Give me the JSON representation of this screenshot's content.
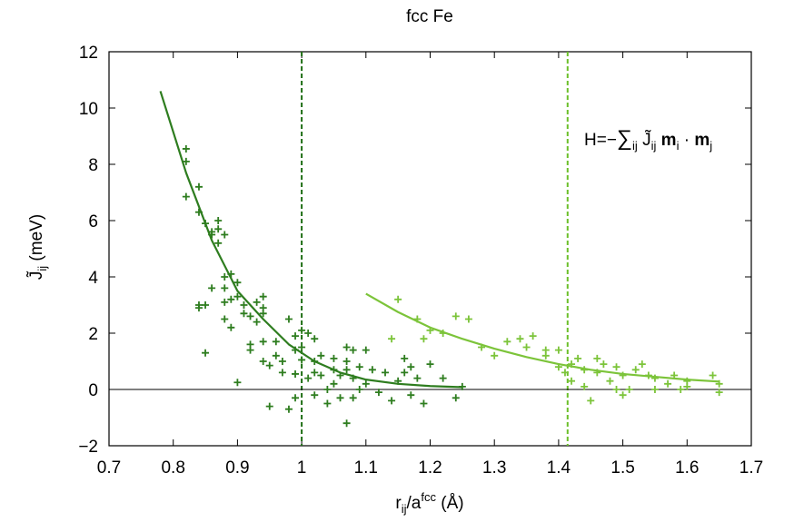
{
  "chart_data": {
    "type": "scatter",
    "title": "fcc Fe",
    "xlabel": {
      "base": "r",
      "base_sub": "ij",
      "mid": "/a",
      "mid_sup": "fcc",
      "unit": " (Å)"
    },
    "ylabel": {
      "base": "J̃",
      "base_sub": "ij",
      "unit": " (meV)"
    },
    "annotation": {
      "prefix": "H=−",
      "sum": "∑",
      "sum_sub": "ij",
      "j": " J̃",
      "j_sub": "ij",
      "m1": " m",
      "m1_sub": "i",
      "dot": " · ",
      "m2": "m",
      "m2_sub": "j"
    },
    "xlim": [
      0.7,
      1.7
    ],
    "ylim": [
      -2,
      12
    ],
    "x_ticks": [
      "0.7",
      "0.8",
      "0.9",
      "1",
      "1.1",
      "1.2",
      "1.3",
      "1.4",
      "1.5",
      "1.6",
      "1.7"
    ],
    "y_ticks": [
      "−2",
      "0",
      "2",
      "4",
      "6",
      "8",
      "10",
      "12"
    ],
    "grid": false,
    "colors": {
      "series1": "#2e7d1f",
      "series2": "#7cc43a",
      "vline1": "#1f6e14",
      "vline2": "#6cc02a"
    },
    "vlines": [
      1.0,
      1.414
    ],
    "series": [
      {
        "marker": "plus",
        "points": [
          [
            0.82,
            8.55
          ],
          [
            0.82,
            8.1
          ],
          [
            0.82,
            6.85
          ],
          [
            0.84,
            7.2
          ],
          [
            0.84,
            6.3
          ],
          [
            0.84,
            3.0
          ],
          [
            0.84,
            2.9
          ],
          [
            0.85,
            5.9
          ],
          [
            0.85,
            3.0
          ],
          [
            0.85,
            1.3
          ],
          [
            0.86,
            5.6
          ],
          [
            0.86,
            3.6
          ],
          [
            0.86,
            5.5
          ],
          [
            0.87,
            6.0
          ],
          [
            0.87,
            5.7
          ],
          [
            0.87,
            5.2
          ],
          [
            0.88,
            5.5
          ],
          [
            0.88,
            4.0
          ],
          [
            0.88,
            3.6
          ],
          [
            0.88,
            3.1
          ],
          [
            0.88,
            2.5
          ],
          [
            0.89,
            4.1
          ],
          [
            0.89,
            3.2
          ],
          [
            0.89,
            2.2
          ],
          [
            0.9,
            3.8
          ],
          [
            0.9,
            3.3
          ],
          [
            0.9,
            0.25
          ],
          [
            0.91,
            3.0
          ],
          [
            0.91,
            2.7
          ],
          [
            0.92,
            2.6
          ],
          [
            0.92,
            1.6
          ],
          [
            0.92,
            1.4
          ],
          [
            0.93,
            3.1
          ],
          [
            0.93,
            2.4
          ],
          [
            0.94,
            3.3
          ],
          [
            0.94,
            2.9
          ],
          [
            0.94,
            2.7
          ],
          [
            0.94,
            1.7
          ],
          [
            0.94,
            1.0
          ],
          [
            0.95,
            0.85
          ],
          [
            0.95,
            -0.6
          ],
          [
            0.96,
            1.7
          ],
          [
            0.96,
            1.2
          ],
          [
            0.97,
            0.6
          ],
          [
            0.97,
            1.0
          ],
          [
            0.98,
            2.5
          ],
          [
            0.98,
            -0.7
          ],
          [
            0.99,
            1.9
          ],
          [
            0.99,
            1.4
          ],
          [
            0.99,
            0.55
          ],
          [
            0.99,
            -0.3
          ],
          [
            1.0,
            2.1
          ],
          [
            1.0,
            1.5
          ],
          [
            1.0,
            1.05
          ],
          [
            1.01,
            2.0
          ],
          [
            1.01,
            0.4
          ],
          [
            1.02,
            1.8
          ],
          [
            1.02,
            1.0
          ],
          [
            1.02,
            0.6
          ],
          [
            1.02,
            -0.2
          ],
          [
            1.03,
            1.2
          ],
          [
            1.03,
            0.5
          ],
          [
            1.04,
            0.0
          ],
          [
            1.04,
            -0.5
          ],
          [
            1.05,
            1.1
          ],
          [
            1.05,
            0.7
          ],
          [
            1.05,
            0.2
          ],
          [
            1.06,
            0.5
          ],
          [
            1.06,
            -0.3
          ],
          [
            1.07,
            1.5
          ],
          [
            1.07,
            1.0
          ],
          [
            1.07,
            0.7
          ],
          [
            1.07,
            -1.2
          ],
          [
            1.08,
            1.4
          ],
          [
            1.08,
            0.4
          ],
          [
            1.08,
            -0.3
          ],
          [
            1.09,
            0.8
          ],
          [
            1.09,
            0.0
          ],
          [
            1.1,
            1.4
          ],
          [
            1.1,
            0.2
          ],
          [
            1.11,
            0.7
          ],
          [
            1.12,
            -0.1
          ],
          [
            1.13,
            0.6
          ],
          [
            1.14,
            -0.4
          ],
          [
            1.15,
            0.3
          ],
          [
            1.16,
            1.1
          ],
          [
            1.16,
            0.6
          ],
          [
            1.17,
            0.8
          ],
          [
            1.17,
            -0.2
          ],
          [
            1.18,
            0.4
          ],
          [
            1.19,
            -0.5
          ],
          [
            1.2,
            0.9
          ],
          [
            1.22,
            0.4
          ],
          [
            1.24,
            -0.3
          ],
          [
            1.25,
            0.1
          ]
        ]
      },
      {
        "marker": "plus",
        "points": [
          [
            1.15,
            3.2
          ],
          [
            1.14,
            1.8
          ],
          [
            1.18,
            2.5
          ],
          [
            1.19,
            1.8
          ],
          [
            1.2,
            2.1
          ],
          [
            1.22,
            2.0
          ],
          [
            1.24,
            2.6
          ],
          [
            1.26,
            2.5
          ],
          [
            1.28,
            1.5
          ],
          [
            1.3,
            1.2
          ],
          [
            1.32,
            1.7
          ],
          [
            1.34,
            1.8
          ],
          [
            1.35,
            1.5
          ],
          [
            1.36,
            1.9
          ],
          [
            1.38,
            1.4
          ],
          [
            1.38,
            1.2
          ],
          [
            1.4,
            0.8
          ],
          [
            1.4,
            1.4
          ],
          [
            1.41,
            0.6
          ],
          [
            1.42,
            0.9
          ],
          [
            1.42,
            0.3
          ],
          [
            1.43,
            1.1
          ],
          [
            1.44,
            0.7
          ],
          [
            1.44,
            0.1
          ],
          [
            1.45,
            -0.4
          ],
          [
            1.46,
            1.1
          ],
          [
            1.46,
            0.6
          ],
          [
            1.47,
            0.9
          ],
          [
            1.48,
            0.3
          ],
          [
            1.49,
            0.8
          ],
          [
            1.49,
            0.0
          ],
          [
            1.5,
            0.5
          ],
          [
            1.5,
            -0.2
          ],
          [
            1.51,
            0.0
          ],
          [
            1.52,
            0.7
          ],
          [
            1.53,
            0.9
          ],
          [
            1.54,
            0.5
          ],
          [
            1.55,
            0.4
          ],
          [
            1.55,
            0.0
          ],
          [
            1.57,
            0.2
          ],
          [
            1.58,
            0.5
          ],
          [
            1.59,
            0.0
          ],
          [
            1.6,
            0.3
          ],
          [
            1.6,
            0.1
          ],
          [
            1.64,
            0.5
          ],
          [
            1.65,
            0.2
          ],
          [
            1.65,
            -0.1
          ]
        ]
      }
    ],
    "fits": [
      {
        "x_range": [
          0.78,
          1.25
        ],
        "points": [
          [
            0.78,
            10.6
          ],
          [
            0.82,
            7.7
          ],
          [
            0.86,
            5.3
          ],
          [
            0.9,
            3.5
          ],
          [
            0.94,
            2.5
          ],
          [
            0.98,
            1.6
          ],
          [
            1.02,
            1.0
          ],
          [
            1.06,
            0.6
          ],
          [
            1.1,
            0.35
          ],
          [
            1.15,
            0.2
          ],
          [
            1.2,
            0.12
          ],
          [
            1.25,
            0.08
          ]
        ]
      },
      {
        "x_range": [
          1.1,
          1.65
        ],
        "points": [
          [
            1.1,
            3.4
          ],
          [
            1.15,
            2.75
          ],
          [
            1.2,
            2.2
          ],
          [
            1.25,
            1.8
          ],
          [
            1.3,
            1.45
          ],
          [
            1.35,
            1.15
          ],
          [
            1.4,
            0.9
          ],
          [
            1.45,
            0.7
          ],
          [
            1.5,
            0.55
          ],
          [
            1.55,
            0.45
          ],
          [
            1.6,
            0.35
          ],
          [
            1.65,
            0.28
          ]
        ]
      }
    ]
  }
}
